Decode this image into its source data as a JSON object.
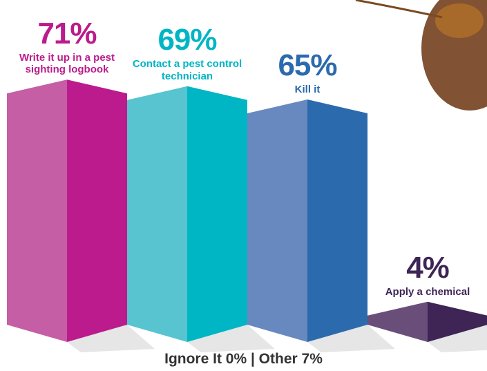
{
  "chart_data": {
    "type": "bar",
    "categories": [
      "Write it up in a pest sighting logbook",
      "Contact a pest control technician",
      "Kill it",
      "Apply a chemical"
    ],
    "values": [
      71,
      69,
      65,
      4
    ],
    "value_labels": [
      "71%",
      "69%",
      "65%",
      "4%"
    ],
    "colors": [
      "#bb1b8c",
      "#00b5c4",
      "#2b6aad",
      "#3e2556"
    ],
    "light_colors": [
      "#c55ea4",
      "#57c4d0",
      "#6888c0",
      "#6a4e7a"
    ],
    "footnote": "Ignore It 0% | Other 7%"
  }
}
